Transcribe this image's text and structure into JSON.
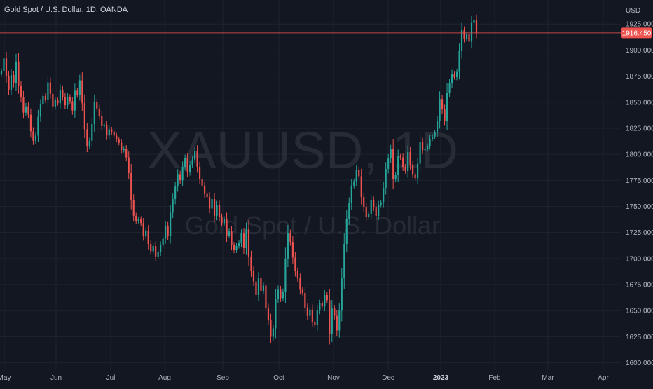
{
  "header": {
    "title": "Gold Spot / U.S. Dollar, 1D, OANDA"
  },
  "watermark": {
    "symbol": "XAUUSD, 1D",
    "description": "Gold Spot / U.S. Dollar"
  },
  "axis": {
    "currency": "USD"
  },
  "colors": {
    "background": "#131722",
    "grid": "#1f2331",
    "up": "#26a69a",
    "down": "#ef5350",
    "axis_text": "#b2b5be",
    "price_line": "#ef5350"
  },
  "chart_data": {
    "type": "candlestick",
    "title": "Gold Spot / U.S. Dollar, 1D, OANDA",
    "ylabel": "USD",
    "ylim": [
      1593,
      1948
    ],
    "y_ticks": [
      1600.0,
      1625.0,
      1650.0,
      1675.0,
      1700.0,
      1725.0,
      1750.0,
      1775.0,
      1800.0,
      1825.0,
      1850.0,
      1875.0,
      1900.0,
      1925.0
    ],
    "x_tick_labels": [
      "May",
      "Jun",
      "Jul",
      "Aug",
      "Sep",
      "Oct",
      "Nov",
      "Dec",
      "2023",
      "Feb",
      "Mar",
      "Apr"
    ],
    "current_price": 1916.45,
    "closes": [
      1880,
      1892,
      1875,
      1862,
      1876,
      1868,
      1889,
      1866,
      1855,
      1840,
      1846,
      1838,
      1822,
      1813,
      1818,
      1836,
      1848,
      1856,
      1852,
      1869,
      1858,
      1846,
      1852,
      1849,
      1862,
      1855,
      1847,
      1855,
      1851,
      1842,
      1861,
      1857,
      1871,
      1849,
      1824,
      1808,
      1813,
      1829,
      1850,
      1844,
      1837,
      1827,
      1828,
      1818,
      1824,
      1821,
      1818,
      1814,
      1811,
      1804,
      1805,
      1797,
      1782,
      1756,
      1741,
      1736,
      1738,
      1734,
      1722,
      1727,
      1714,
      1707,
      1712,
      1702,
      1706,
      1713,
      1719,
      1731,
      1722,
      1744,
      1757,
      1769,
      1781,
      1775,
      1788,
      1796,
      1783,
      1790,
      1795,
      1803,
      1788,
      1776,
      1770,
      1762,
      1759,
      1748,
      1757,
      1741,
      1751,
      1740,
      1734,
      1738,
      1722,
      1726,
      1713,
      1708,
      1712,
      1715,
      1724,
      1710,
      1728,
      1702,
      1688,
      1678,
      1665,
      1681,
      1669,
      1674,
      1652,
      1641,
      1625,
      1633,
      1661,
      1670,
      1662,
      1668,
      1700,
      1724,
      1716,
      1701,
      1688,
      1681,
      1670,
      1667,
      1653,
      1645,
      1651,
      1639,
      1636,
      1650,
      1657,
      1654,
      1665,
      1660,
      1628,
      1652,
      1645,
      1631,
      1650,
      1681,
      1714,
      1738,
      1753,
      1770,
      1774,
      1785,
      1779,
      1759,
      1749,
      1740,
      1743,
      1756,
      1749,
      1741,
      1751,
      1754,
      1768,
      1786,
      1796,
      1805,
      1776,
      1780,
      1798,
      1797,
      1788,
      1784,
      1802,
      1790,
      1781,
      1777,
      1791,
      1812,
      1804,
      1805,
      1808,
      1815,
      1817,
      1821,
      1832,
      1853,
      1843,
      1832,
      1859,
      1868,
      1877,
      1874,
      1879,
      1899,
      1919,
      1911,
      1915,
      1908,
      1926,
      1929,
      1916.45
    ]
  }
}
